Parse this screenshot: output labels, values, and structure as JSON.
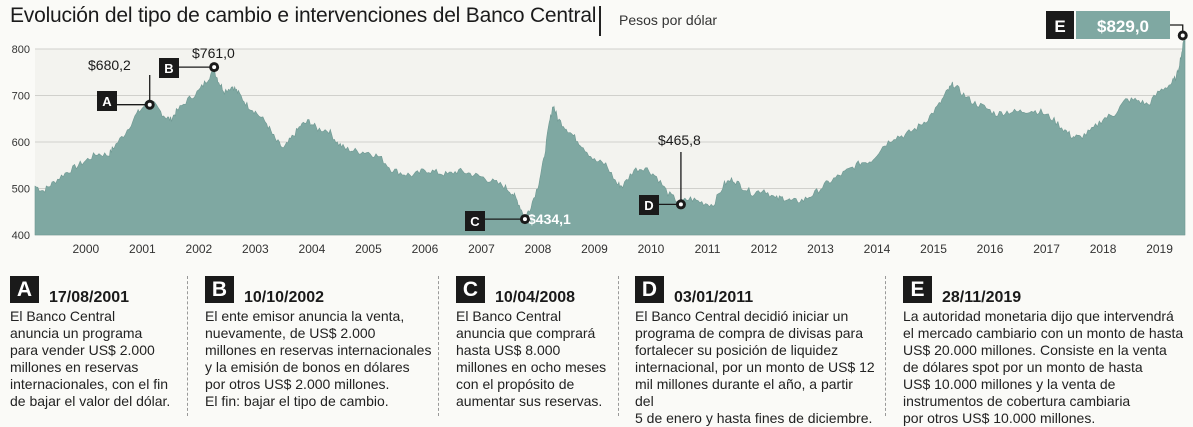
{
  "header": {
    "title": "Evolución del tipo de cambio e intervenciones del Banco Central",
    "units": "Pesos por dólar"
  },
  "chart_data": {
    "type": "area",
    "title": "Evolución del tipo de cambio e intervenciones del Banco Central",
    "ylabel": "Pesos por dólar",
    "ylim": [
      400,
      800
    ],
    "yticks": [
      "400",
      "500",
      "600",
      "700",
      "800"
    ],
    "xlim": [
      1999.6,
      2019.95
    ],
    "xticks": [
      "2000",
      "2001",
      "2002",
      "2003",
      "2004",
      "2005",
      "2006",
      "2007",
      "2008",
      "2009",
      "2010",
      "2011",
      "2012",
      "2013",
      "2014",
      "2015",
      "2016",
      "2017",
      "2018",
      "2019"
    ],
    "grid": true,
    "color": "#7fa8a2",
    "series": [
      {
        "values": [
          [
            1999.6,
            505
          ],
          [
            1999.75,
            495
          ],
          [
            1999.9,
            510
          ],
          [
            2000.1,
            530
          ],
          [
            2000.3,
            545
          ],
          [
            2000.5,
            560
          ],
          [
            2000.7,
            575
          ],
          [
            2000.9,
            572
          ],
          [
            2001.0,
            590
          ],
          [
            2001.2,
            620
          ],
          [
            2001.4,
            660
          ],
          [
            2001.55,
            680
          ],
          [
            2001.63,
            690
          ],
          [
            2001.75,
            675
          ],
          [
            2001.9,
            655
          ],
          [
            2002.0,
            648
          ],
          [
            2002.1,
            665
          ],
          [
            2002.3,
            690
          ],
          [
            2002.5,
            710
          ],
          [
            2002.65,
            735
          ],
          [
            2002.77,
            755
          ],
          [
            2002.85,
            730
          ],
          [
            2002.95,
            710
          ],
          [
            2003.1,
            720
          ],
          [
            2003.2,
            705
          ],
          [
            2003.35,
            680
          ],
          [
            2003.5,
            665
          ],
          [
            2003.7,
            640
          ],
          [
            2003.85,
            605
          ],
          [
            2004.0,
            585
          ],
          [
            2004.15,
            610
          ],
          [
            2004.3,
            635
          ],
          [
            2004.45,
            645
          ],
          [
            2004.6,
            628
          ],
          [
            2004.8,
            625
          ],
          [
            2004.95,
            598
          ],
          [
            2005.1,
            585
          ],
          [
            2005.3,
            580
          ],
          [
            2005.5,
            578
          ],
          [
            2005.7,
            568
          ],
          [
            2005.9,
            542
          ],
          [
            2006.1,
            532
          ],
          [
            2006.3,
            528
          ],
          [
            2006.5,
            540
          ],
          [
            2006.7,
            535
          ],
          [
            2006.9,
            530
          ],
          [
            2007.1,
            538
          ],
          [
            2007.3,
            532
          ],
          [
            2007.5,
            525
          ],
          [
            2007.7,
            515
          ],
          [
            2007.9,
            505
          ],
          [
            2008.05,
            490
          ],
          [
            2008.15,
            470
          ],
          [
            2008.27,
            438
          ],
          [
            2008.35,
            455
          ],
          [
            2008.5,
            505
          ],
          [
            2008.6,
            560
          ],
          [
            2008.7,
            640
          ],
          [
            2008.77,
            680
          ],
          [
            2008.85,
            650
          ],
          [
            2009.0,
            630
          ],
          [
            2009.15,
            610
          ],
          [
            2009.3,
            590
          ],
          [
            2009.5,
            560
          ],
          [
            2009.7,
            552
          ],
          [
            2009.9,
            510
          ],
          [
            2010.0,
            505
          ],
          [
            2010.2,
            540
          ],
          [
            2010.4,
            545
          ],
          [
            2010.6,
            525
          ],
          [
            2010.8,
            490
          ],
          [
            2011.0,
            470
          ],
          [
            2011.2,
            478
          ],
          [
            2011.4,
            470
          ],
          [
            2011.6,
            465
          ],
          [
            2011.8,
            510
          ],
          [
            2011.95,
            520
          ],
          [
            2012.1,
            505
          ],
          [
            2012.3,
            490
          ],
          [
            2012.5,
            498
          ],
          [
            2012.7,
            478
          ],
          [
            2012.85,
            480
          ],
          [
            2013.0,
            472
          ],
          [
            2013.2,
            475
          ],
          [
            2013.4,
            490
          ],
          [
            2013.6,
            510
          ],
          [
            2013.8,
            525
          ],
          [
            2014.0,
            540
          ],
          [
            2014.2,
            555
          ],
          [
            2014.4,
            560
          ],
          [
            2014.6,
            590
          ],
          [
            2014.8,
            610
          ],
          [
            2015.0,
            615
          ],
          [
            2015.2,
            630
          ],
          [
            2015.4,
            650
          ],
          [
            2015.6,
            680
          ],
          [
            2015.75,
            710
          ],
          [
            2015.85,
            725
          ],
          [
            2016.0,
            705
          ],
          [
            2016.2,
            685
          ],
          [
            2016.4,
            675
          ],
          [
            2016.6,
            660
          ],
          [
            2016.8,
            665
          ],
          [
            2017.0,
            665
          ],
          [
            2017.2,
            668
          ],
          [
            2017.4,
            665
          ],
          [
            2017.6,
            650
          ],
          [
            2017.8,
            628
          ],
          [
            2017.95,
            612
          ],
          [
            2018.1,
            610
          ],
          [
            2018.3,
            625
          ],
          [
            2018.5,
            650
          ],
          [
            2018.7,
            660
          ],
          [
            2018.9,
            690
          ],
          [
            2019.1,
            690
          ],
          [
            2019.3,
            680
          ],
          [
            2019.5,
            710
          ],
          [
            2019.7,
            725
          ],
          [
            2019.8,
            740
          ],
          [
            2019.88,
            785
          ],
          [
            2019.95,
            829
          ]
        ]
      }
    ],
    "annotations": [
      {
        "id": "A",
        "x": 2001.63,
        "y": 680.2,
        "label": "$680,2"
      },
      {
        "id": "B",
        "x": 2002.77,
        "y": 761.0,
        "label": "$761,0"
      },
      {
        "id": "C",
        "x": 2008.27,
        "y": 434.1,
        "label": "$434,1"
      },
      {
        "id": "D",
        "x": 2011.03,
        "y": 465.8,
        "label": "$465,8"
      },
      {
        "id": "E",
        "x": 2019.91,
        "y": 829.0,
        "label": "$829,0"
      }
    ]
  },
  "events": [
    {
      "id": "A",
      "date": "17/08/2001",
      "text": [
        "El Banco Central",
        "anuncia un programa",
        "para vender US$ 2.000",
        "millones en reservas",
        "internacionales, con el fin",
        "de bajar el valor del dólar."
      ]
    },
    {
      "id": "B",
      "date": "10/10/2002",
      "text": [
        "El ente emisor anuncia la venta,",
        "nuevamente, de US$ 2.000",
        "millones en reservas internacionales",
        "y la emisión de bonos en dólares",
        "por otros US$ 2.000 millones.",
        "El fin: bajar el tipo de cambio."
      ]
    },
    {
      "id": "C",
      "date": "10/04/2008",
      "text": [
        "El Banco Central",
        "anuncia que comprará",
        "hasta US$ 8.000",
        "millones en ocho meses",
        "con el propósito de",
        "aumentar sus reservas."
      ]
    },
    {
      "id": "D",
      "date": "03/01/2011",
      "text": [
        "El Banco Central decidió iniciar un",
        "programa de compra de divisas para",
        "fortalecer su posición de liquidez",
        "internacional, por un monto de US$ 12",
        "mil millones durante el año, a partir del",
        "5 de enero y hasta fines de diciembre."
      ]
    },
    {
      "id": "E",
      "date": "28/11/2019",
      "text": [
        "La autoridad monetaria dijo que intervendrá",
        "el mercado cambiario con un monto de hasta",
        "US$ 20.000 millones. Consiste en la venta",
        "de dólares spot por un monto de hasta",
        "US$ 10.000 millones y la venta de",
        "instrumentos de cobertura cambiaria",
        "por otros US$ 10.000 millones."
      ]
    }
  ]
}
